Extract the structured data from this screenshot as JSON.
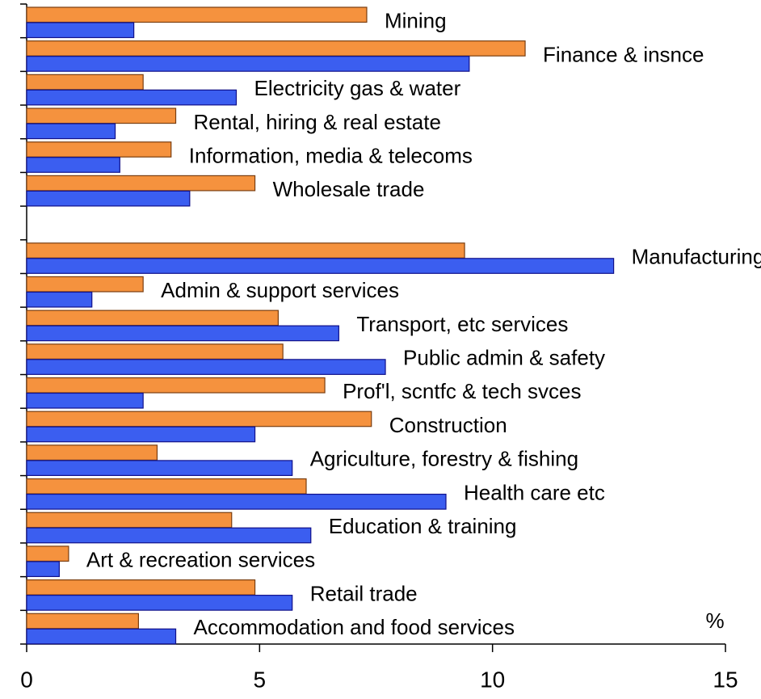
{
  "chart_data": {
    "type": "hbar",
    "categories": [
      "Mining",
      "Finance & insnce",
      "Electricity gas & water",
      "Rental, hiring & real estate",
      "Information, media & telecoms",
      "Wholesale trade",
      null,
      "Manufacturing",
      "Admin & support services",
      "Transport, etc services",
      "Public admin & safety",
      "Prof'l, scntfc & tech svces",
      "Construction",
      "Agriculture, forestry & fishing",
      "Health care etc",
      "Education & training",
      "Art & recreation services",
      "Retail trade",
      "Accommodation and food services"
    ],
    "series": [
      {
        "color": "#f5923e",
        "values": [
          7.3,
          10.7,
          2.5,
          3.2,
          3.1,
          4.9,
          null,
          9.4,
          2.5,
          5.4,
          5.5,
          6.4,
          7.4,
          2.8,
          6.0,
          4.4,
          0.9,
          4.9,
          2.4
        ]
      },
      {
        "color": "#3b5ef0",
        "values": [
          2.3,
          9.5,
          4.5,
          1.9,
          2.0,
          3.5,
          null,
          12.6,
          1.4,
          6.7,
          7.7,
          2.5,
          4.9,
          5.7,
          9.0,
          6.1,
          0.7,
          5.7,
          3.2
        ]
      }
    ],
    "x_unit": "%",
    "xlim": [
      0,
      15
    ],
    "xticks": [
      0,
      5,
      10,
      15
    ]
  }
}
